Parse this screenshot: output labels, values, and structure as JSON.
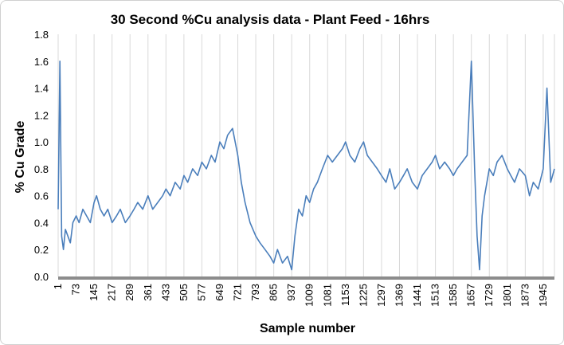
{
  "chart_data": {
    "type": "line",
    "title": "30 Second %Cu analysis data - Plant Feed - 16hrs",
    "xlabel": "Sample number",
    "ylabel": "% Cu Grade",
    "ylim": [
      0,
      1.8
    ],
    "yticks": [
      "0.0",
      "0.2",
      "0.4",
      "0.6",
      "0.8",
      "1.0",
      "1.2",
      "1.4",
      "1.6",
      "1.8"
    ],
    "x_range": [
      1,
      1990
    ],
    "xticks": [
      "1",
      "73",
      "145",
      "217",
      "289",
      "361",
      "433",
      "505",
      "577",
      "649",
      "721",
      "793",
      "865",
      "937",
      "1009",
      "1081",
      "1153",
      "1225",
      "1297",
      "1369",
      "1441",
      "1513",
      "1585",
      "1657",
      "1729",
      "1801",
      "1873",
      "1945"
    ],
    "grid": "vertical",
    "series_color": "#4a7ebb",
    "series": [
      {
        "x": [
          1,
          8,
          15,
          22,
          30,
          40,
          50,
          60,
          73,
          85,
          100,
          115,
          130,
          145,
          155,
          170,
          185,
          200,
          217,
          235,
          250,
          270,
          289,
          305,
          320,
          340,
          361,
          380,
          400,
          420,
          433,
          450,
          470,
          490,
          505,
          520,
          540,
          560,
          577,
          595,
          615,
          630,
          649,
          665,
          680,
          700,
          721,
          735,
          750,
          770,
          793,
          810,
          830,
          850,
          865,
          880,
          900,
          920,
          937,
          950,
          965,
          980,
          995,
          1009,
          1025,
          1040,
          1060,
          1081,
          1100,
          1120,
          1140,
          1153,
          1170,
          1190,
          1210,
          1225,
          1240,
          1260,
          1280,
          1297,
          1315,
          1330,
          1350,
          1369,
          1385,
          1400,
          1420,
          1441,
          1460,
          1480,
          1500,
          1513,
          1530,
          1550,
          1570,
          1585,
          1600,
          1620,
          1640,
          1657,
          1670,
          1680,
          1690,
          1700,
          1710,
          1729,
          1745,
          1760,
          1780,
          1801,
          1815,
          1830,
          1850,
          1873,
          1890,
          1905,
          1925,
          1945,
          1960,
          1975,
          1990
        ],
        "values": [
          0.5,
          1.6,
          0.3,
          0.2,
          0.35,
          0.3,
          0.25,
          0.4,
          0.45,
          0.4,
          0.5,
          0.45,
          0.4,
          0.55,
          0.6,
          0.5,
          0.45,
          0.5,
          0.4,
          0.45,
          0.5,
          0.4,
          0.45,
          0.5,
          0.55,
          0.5,
          0.6,
          0.5,
          0.55,
          0.6,
          0.65,
          0.6,
          0.7,
          0.65,
          0.75,
          0.7,
          0.8,
          0.75,
          0.85,
          0.8,
          0.9,
          0.85,
          1.0,
          0.95,
          1.05,
          1.1,
          0.9,
          0.7,
          0.55,
          0.4,
          0.3,
          0.25,
          0.2,
          0.15,
          0.1,
          0.2,
          0.1,
          0.15,
          0.05,
          0.3,
          0.5,
          0.45,
          0.6,
          0.55,
          0.65,
          0.7,
          0.8,
          0.9,
          0.85,
          0.9,
          0.95,
          1.0,
          0.9,
          0.85,
          0.95,
          1.0,
          0.9,
          0.85,
          0.8,
          0.75,
          0.7,
          0.8,
          0.65,
          0.7,
          0.75,
          0.8,
          0.7,
          0.65,
          0.75,
          0.8,
          0.85,
          0.9,
          0.8,
          0.85,
          0.8,
          0.75,
          0.8,
          0.85,
          0.9,
          1.6,
          0.8,
          0.3,
          0.05,
          0.45,
          0.6,
          0.8,
          0.75,
          0.85,
          0.9,
          0.8,
          0.75,
          0.7,
          0.8,
          0.75,
          0.6,
          0.7,
          0.65,
          0.8,
          1.4,
          0.7,
          0.8
        ]
      }
    ]
  }
}
